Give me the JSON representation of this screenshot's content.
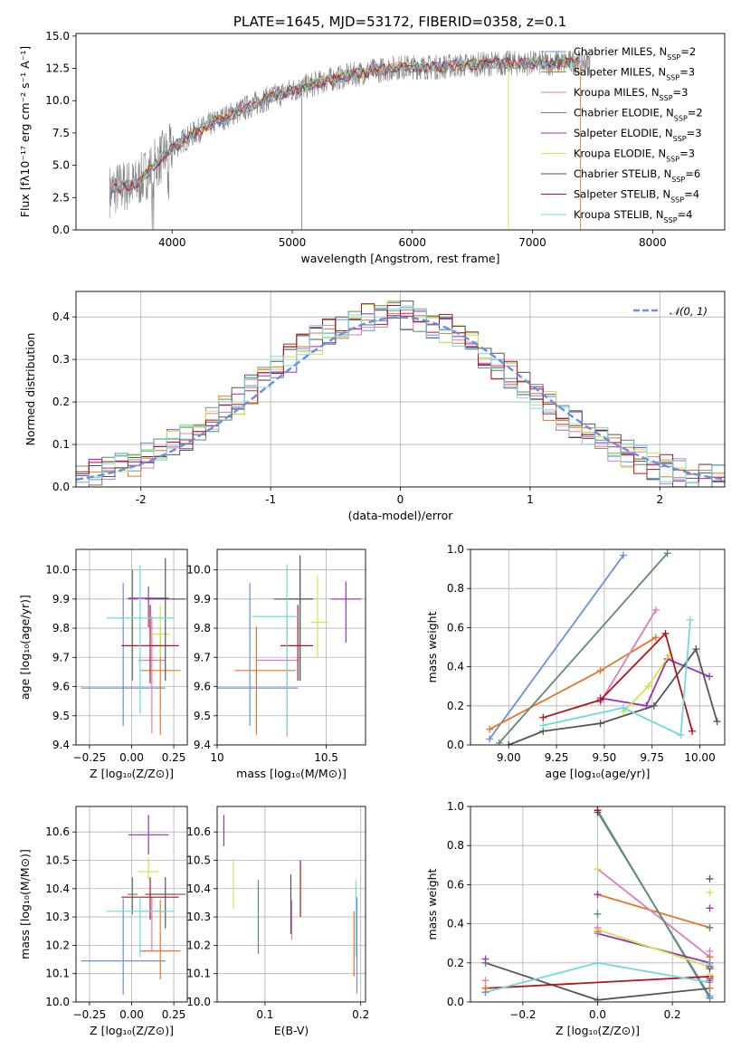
{
  "title": "PLATE=1645, MJD=53172, FIBERID=0358, z=0.1",
  "model_names": [
    "Chabrier MILES",
    "Salpeter MILES",
    "Kroupa MILES",
    "Chabrier ELODIE",
    "Salpeter ELODIE",
    "Kroupa ELODIE",
    "Chabrier STELIB",
    "Salpeter STELIB",
    "Kroupa STELIB"
  ],
  "model_colors": [
    "#6a8fdc",
    "#e2762a",
    "#e07bba",
    "#5d8c6a",
    "#9a2fb8",
    "#c9e84a",
    "#555555",
    "#b0151c",
    "#74d8dc"
  ],
  "chart_data": [
    {
      "type": "line",
      "name": "spectrum",
      "xlabel": "wavelength [Angstrom, rest frame]",
      "ylabel": "Flux [fλ10⁻¹⁷ erg cm⁻² s⁻¹ A⁻¹]",
      "xlim": [
        3200,
        8600
      ],
      "ylim": [
        0,
        15.2
      ],
      "xticks": [
        4000,
        5000,
        6000,
        7000,
        8000
      ],
      "yticks": [
        0.0,
        2.5,
        5.0,
        7.5,
        10.0,
        12.5,
        15.0
      ],
      "ytick_labels": [
        "0.0",
        "2.5",
        "5.0",
        "7.5",
        "10.0",
        "12.5",
        "15.0"
      ],
      "data_color": "#808080",
      "legend_position": "upper-right",
      "legend": [
        {
          "label": "Chabrier MILES, N",
          "sub": "SSP",
          "eq": "=2"
        },
        {
          "label": "Salpeter MILES, N",
          "sub": "SSP",
          "eq": "=3"
        },
        {
          "label": "Kroupa MILES, N",
          "sub": "SSP",
          "eq": "=3"
        },
        {
          "label": "Chabrier ELODIE, N",
          "sub": "SSP",
          "eq": "=2"
        },
        {
          "label": "Salpeter ELODIE, N",
          "sub": "SSP",
          "eq": "=3"
        },
        {
          "label": "Kroupa ELODIE, N",
          "sub": "SSP",
          "eq": "=3"
        },
        {
          "label": "Chabrier STELIB, N",
          "sub": "SSP",
          "eq": "=6"
        },
        {
          "label": "Salpeter STELIB, N",
          "sub": "SSP",
          "eq": "=4"
        },
        {
          "label": "Kroupa STELIB, N",
          "sub": "SSP",
          "eq": "=4"
        }
      ],
      "continuum": {
        "x": [
          3480,
          3600,
          3700,
          3800,
          3900,
          4000,
          4200,
          4500,
          4800,
          5000,
          5300,
          5600,
          5900,
          6200,
          6500,
          6800,
          7100,
          7400
        ],
        "y": [
          3.0,
          3.4,
          3.5,
          4.5,
          5.5,
          6.3,
          7.6,
          9.0,
          10.2,
          10.8,
          11.6,
          12.2,
          12.6,
          12.6,
          12.8,
          12.9,
          12.9,
          13.0
        ]
      }
    },
    {
      "type": "step",
      "name": "residual histogram",
      "xlabel": "(data-model)/error",
      "ylabel": "Normed distribution",
      "xlim": [
        -2.5,
        2.5
      ],
      "ylim": [
        0,
        0.46
      ],
      "xticks": [
        -2,
        -1,
        0,
        1,
        2
      ],
      "yticks": [
        0.0,
        0.1,
        0.2,
        0.3,
        0.4
      ],
      "reference_curve": {
        "label": "𝒩(0, 1)",
        "sigma": 1.0,
        "color": "#6a8fdc"
      },
      "legend_position": "upper-right"
    },
    {
      "type": "errorbar",
      "name": "age vs Z",
      "xlabel": "Z [log₁₀(Z/Z⊙)]",
      "ylabel": "age  [log₁₀(age/yr)]",
      "xlim": [
        -0.33,
        0.33
      ],
      "ylim": [
        9.4,
        10.07
      ],
      "xticks": [
        -0.25,
        0.0,
        0.25
      ],
      "xtick_labels": [
        "−0.25",
        "0.00",
        "0.25"
      ],
      "yticks": [
        9.4,
        9.5,
        9.6,
        9.7,
        9.8,
        9.9,
        10.0
      ],
      "points": [
        {
          "x": -0.05,
          "xerr": 0.25,
          "y": 9.595,
          "yerr": [
            0.13,
            0.36
          ]
        },
        {
          "x": 0.17,
          "xerr": 0.12,
          "y": 9.655,
          "yerr": [
            0.22,
            0.15
          ]
        },
        {
          "x": 0.12,
          "xerr": 0.08,
          "y": 9.69,
          "yerr": [
            0.25,
            0.15
          ]
        },
        {
          "x": 0.005,
          "xerr": 0.03,
          "y": 9.9,
          "yerr": [
            0.28,
            0.1
          ]
        },
        {
          "x": 0.1,
          "xerr": 0.12,
          "y": 9.903,
          "yerr": [
            0.1,
            0.04
          ]
        },
        {
          "x": 0.17,
          "xerr": 0.06,
          "y": 9.78,
          "yerr": [
            0.08,
            0.1
          ]
        },
        {
          "x": 0.2,
          "xerr": 0.12,
          "y": 9.9,
          "yerr": [
            0.28,
            0.14
          ]
        },
        {
          "x": 0.11,
          "xerr": 0.17,
          "y": 9.74,
          "yerr": [
            0.13,
            0.14
          ]
        },
        {
          "x": 0.05,
          "xerr": 0.2,
          "y": 9.835,
          "yerr": [
            0.33,
            0.18
          ]
        }
      ]
    },
    {
      "type": "errorbar",
      "name": "age vs mass",
      "xlabel": "mass [log₁₀(M/M⊙)]",
      "xlim": [
        10.0,
        10.68
      ],
      "ylim": [
        9.4,
        10.07
      ],
      "xticks": [
        10.0,
        10.5
      ],
      "yticks": [
        9.4,
        9.5,
        9.6,
        9.7,
        9.8,
        9.9,
        10.0
      ],
      "points": [
        {
          "x": 10.15,
          "xerr": [
            0.15,
            0.22
          ],
          "y": 9.595,
          "yerr": [
            0.13,
            0.36
          ]
        },
        {
          "x": 10.18,
          "xerr": [
            0.1,
            0.18
          ],
          "y": 9.655,
          "yerr": [
            0.22,
            0.15
          ]
        },
        {
          "x": 10.32,
          "xerr": [
            0.14,
            0.05
          ],
          "y": 9.69,
          "yerr": [
            0.26,
            0.16
          ]
        },
        {
          "x": 10.38,
          "xerr": [
            0.07,
            0.06
          ],
          "y": 9.9,
          "yerr": [
            0.28,
            0.1
          ]
        },
        {
          "x": 10.59,
          "xerr": [
            0.07,
            0.07
          ],
          "y": 9.9,
          "yerr": [
            0.15,
            0.06
          ]
        },
        {
          "x": 10.46,
          "xerr": [
            0.03,
            0.05
          ],
          "y": 9.82,
          "yerr": [
            0.12,
            0.16
          ]
        },
        {
          "x": 10.38,
          "xerr": [
            0.12,
            0.06
          ],
          "y": 9.9,
          "yerr": [
            0.28,
            0.15
          ]
        },
        {
          "x": 10.37,
          "xerr": [
            0.08,
            0.07
          ],
          "y": 9.74,
          "yerr": [
            0.12,
            0.14
          ]
        },
        {
          "x": 10.32,
          "xerr": [
            0.16,
            0.05
          ],
          "y": 9.84,
          "yerr": [
            0.4,
            0.18
          ]
        }
      ]
    },
    {
      "type": "line",
      "name": "mass weight vs age",
      "xlabel": "age  [log₁₀(age/yr)]",
      "ylabel": "mass weight",
      "xlim": [
        8.8,
        10.13
      ],
      "ylim": [
        0,
        1.0
      ],
      "xticks": [
        9.0,
        9.25,
        9.5,
        9.75,
        10.0
      ],
      "xtick_labels": [
        "9.00",
        "9.25",
        "9.50",
        "9.75",
        "10.00"
      ],
      "yticks": [
        0.0,
        0.2,
        0.4,
        0.6,
        0.8,
        1.0
      ],
      "series": [
        {
          "x": [
            8.9,
            9.6
          ],
          "y": [
            0.03,
            0.97
          ]
        },
        {
          "x": [
            8.9,
            9.48,
            9.77
          ],
          "y": [
            0.08,
            0.38,
            0.55
          ]
        },
        {
          "x": [
            9.48,
            9.77
          ],
          "y": [
            0.22,
            0.69
          ]
        },
        {
          "x": [
            8.95,
            9.83
          ],
          "y": [
            0.01,
            0.98
          ]
        },
        {
          "x": [
            9.48,
            9.72,
            9.83,
            10.05
          ],
          "y": [
            0.24,
            0.2,
            0.44,
            0.35
          ]
        },
        {
          "x": [
            9.6,
            9.73,
            9.84
          ],
          "y": [
            0.17,
            0.3,
            0.46
          ]
        },
        {
          "x": [
            9.0,
            9.18,
            9.48,
            9.76,
            9.98,
            10.09
          ],
          "y": [
            0.0,
            0.07,
            0.11,
            0.2,
            0.49,
            0.12
          ]
        },
        {
          "x": [
            9.18,
            9.48,
            9.82,
            9.96
          ],
          "y": [
            0.14,
            0.23,
            0.57,
            0.07
          ]
        },
        {
          "x": [
            9.18,
            9.6,
            9.9,
            9.95
          ],
          "y": [
            0.1,
            0.19,
            0.05,
            0.64
          ]
        }
      ]
    },
    {
      "type": "errorbar",
      "name": "mass vs Z",
      "xlabel": "Z [log₁₀(Z/Z⊙)]",
      "ylabel": "mass [log₁₀(M/M⊙)]",
      "xlim": [
        -0.33,
        0.33
      ],
      "ylim": [
        10.0,
        10.69
      ],
      "xticks": [
        -0.25,
        0.0,
        0.25
      ],
      "xtick_labels": [
        "−0.25",
        "0.00",
        "0.25"
      ],
      "yticks": [
        10.0,
        10.1,
        10.2,
        10.3,
        10.4,
        10.5,
        10.6
      ],
      "points": [
        {
          "x": -0.05,
          "xerr": 0.25,
          "y": 10.145,
          "yerr": [
            0.12,
            0.22
          ]
        },
        {
          "x": 0.17,
          "xerr": 0.12,
          "y": 10.18,
          "yerr": [
            0.1,
            0.18
          ]
        },
        {
          "x": 0.12,
          "xerr": 0.08,
          "y": 10.32,
          "yerr": [
            0.14,
            0.05
          ]
        },
        {
          "x": 0.005,
          "xerr": 0.03,
          "y": 10.38,
          "yerr": [
            0.07,
            0.06
          ]
        },
        {
          "x": 0.1,
          "xerr": 0.12,
          "y": 10.59,
          "yerr": [
            0.07,
            0.07
          ]
        },
        {
          "x": 0.1,
          "xerr": 0.06,
          "y": 10.46,
          "yerr": [
            0.03,
            0.05
          ]
        },
        {
          "x": 0.2,
          "xerr": 0.12,
          "y": 10.38,
          "yerr": [
            0.12,
            0.06
          ]
        },
        {
          "x": 0.11,
          "xerr": 0.17,
          "y": 10.37,
          "yerr": [
            0.08,
            0.07
          ]
        },
        {
          "x": 0.05,
          "xerr": 0.2,
          "y": 10.32,
          "yerr": [
            0.16,
            0.05
          ]
        }
      ]
    },
    {
      "type": "errorbar",
      "name": "mass vs E(B-V)",
      "xlabel": "E(B-V)",
      "xlim": [
        0.05,
        0.205
      ],
      "ylim": [
        10.0,
        10.69
      ],
      "xticks": [
        0.1,
        0.2
      ],
      "yticks": [
        10.0,
        10.1,
        10.2,
        10.3,
        10.4,
        10.5,
        10.6
      ],
      "points": [
        {
          "x": 0.196,
          "y": 10.14,
          "yerr": [
            0.11,
            0.23
          ]
        },
        {
          "x": 0.193,
          "y": 10.21,
          "yerr": [
            0.12,
            0.11
          ]
        },
        {
          "x": 0.128,
          "y": 10.3,
          "yerr": [
            0.08,
            0.06
          ]
        },
        {
          "x": 0.093,
          "y": 10.3,
          "yerr": [
            0.13,
            0.13
          ]
        },
        {
          "x": 0.057,
          "y": 10.6,
          "yerr": [
            0.05,
            0.06
          ]
        },
        {
          "x": 0.067,
          "y": 10.42,
          "yerr": [
            0.09,
            0.08
          ]
        },
        {
          "x": 0.127,
          "y": 10.35,
          "yerr": [
            0.11,
            0.1
          ]
        },
        {
          "x": 0.137,
          "y": 10.4,
          "yerr": [
            0.1,
            0.1
          ]
        },
        {
          "x": 0.195,
          "y": 10.28,
          "yerr": [
            0.12,
            0.15
          ]
        }
      ]
    },
    {
      "type": "line",
      "name": "mass weight vs Z",
      "xlabel": "Z [log₁₀(Z/Z⊙)]",
      "ylabel": "mass weight",
      "xlim": [
        -0.34,
        0.34
      ],
      "ylim": [
        0,
        1.0
      ],
      "xticks": [
        -0.2,
        0.0,
        0.2
      ],
      "xtick_labels": [
        "−0.2",
        "0.0",
        "0.2"
      ],
      "yticks": [
        0.0,
        0.2,
        0.4,
        0.6,
        0.8,
        1.0
      ],
      "series": [
        {
          "x": [
            0.0,
            0.3
          ],
          "y": [
            0.97,
            0.03
          ]
        },
        {
          "x": [
            0.0,
            0.3
          ],
          "y": [
            0.55,
            0.38
          ]
        },
        {
          "x": [
            0.0,
            0.3
          ],
          "y": [
            0.68,
            0.23
          ]
        },
        {
          "x": [
            0.0,
            0.3
          ],
          "y": [
            0.98,
            0.02
          ]
        },
        {
          "x": [
            0.0,
            0.3
          ],
          "y": [
            0.35,
            0.2
          ]
        },
        {
          "x": [
            0.0,
            0.3
          ],
          "y": [
            0.37,
            0.18
          ]
        },
        {
          "x": [
            -0.3,
            0.0,
            0.3
          ],
          "y": [
            0.2,
            0.01,
            0.07
          ]
        },
        {
          "x": [
            -0.3,
            0.3
          ],
          "y": [
            0.07,
            0.13
          ]
        },
        {
          "x": [
            -0.3,
            0.0,
            0.3
          ],
          "y": [
            0.05,
            0.2,
            0.1
          ]
        }
      ],
      "markers_right": [
        0.03,
        0.07,
        0.1,
        0.11,
        0.12,
        0.14,
        0.17,
        0.18,
        0.19,
        0.2,
        0.23,
        0.26,
        0.38,
        0.48,
        0.56,
        0.63
      ],
      "markers_left": [
        0.05,
        0.07,
        0.11,
        0.2,
        0.22
      ],
      "markers_mid": [
        0.35,
        0.36,
        0.38,
        0.45,
        0.55,
        0.68,
        0.97,
        0.98
      ]
    }
  ]
}
